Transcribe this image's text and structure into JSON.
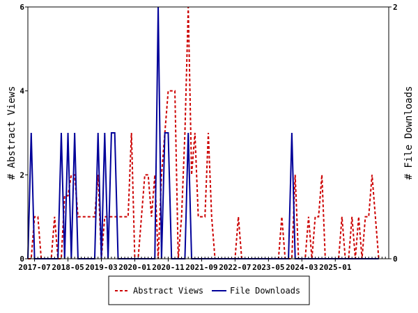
{
  "chart_data": {
    "type": "line",
    "title": "",
    "xlabel": "",
    "ylabel_left": "# Abstract Views",
    "ylabel_right": "# File Downloads",
    "ylim_left": [
      0,
      6
    ],
    "ylim_right": [
      0,
      2
    ],
    "yticks_left": [
      "0",
      "2",
      "4",
      "6"
    ],
    "yticks_right": [
      "0",
      "2"
    ],
    "x_range": [
      "2017-05",
      "2026-05"
    ],
    "x_ticks": [
      "2017-07",
      "2018-05",
      "2019-03",
      "2020-01",
      "2020-11",
      "2021-09",
      "2022-07",
      "2023-05",
      "2024-03",
      "2025-01"
    ],
    "grid": false,
    "legend_placement": "bottom",
    "series": [
      {
        "name": "Abstract Views",
        "axis": "left",
        "color": "#cc0000",
        "dash": "dashed",
        "points": [
          [
            "2017-05",
            0
          ],
          [
            "2017-06",
            0
          ],
          [
            "2017-07",
            1
          ],
          [
            "2017-08",
            1
          ],
          [
            "2017-09",
            0
          ],
          [
            "2017-10",
            0
          ],
          [
            "2017-11",
            0
          ],
          [
            "2017-12",
            0
          ],
          [
            "2018-01",
            1
          ],
          [
            "2018-02",
            0
          ],
          [
            "2018-03",
            0
          ],
          [
            "2018-04",
            1.5
          ],
          [
            "2018-05",
            1.5
          ],
          [
            "2018-06",
            2
          ],
          [
            "2018-07",
            2
          ],
          [
            "2018-08",
            1
          ],
          [
            "2018-09",
            1
          ],
          [
            "2018-10",
            1
          ],
          [
            "2018-11",
            1
          ],
          [
            "2018-12",
            1
          ],
          [
            "2019-01",
            1
          ],
          [
            "2019-02",
            2
          ],
          [
            "2019-03",
            0
          ],
          [
            "2019-04",
            1
          ],
          [
            "2019-05",
            1
          ],
          [
            "2019-06",
            1
          ],
          [
            "2019-07",
            1
          ],
          [
            "2019-08",
            1
          ],
          [
            "2019-09",
            1
          ],
          [
            "2019-10",
            1
          ],
          [
            "2019-11",
            1
          ],
          [
            "2019-12",
            3
          ],
          [
            "2020-01",
            0
          ],
          [
            "2020-02",
            0
          ],
          [
            "2020-03",
            1
          ],
          [
            "2020-04",
            2
          ],
          [
            "2020-05",
            2
          ],
          [
            "2020-06",
            1
          ],
          [
            "2020-07",
            2
          ],
          [
            "2020-08",
            0
          ],
          [
            "2020-09",
            2
          ],
          [
            "2020-10",
            3
          ],
          [
            "2020-11",
            4
          ],
          [
            "2020-12",
            4
          ],
          [
            "2021-01",
            4
          ],
          [
            "2021-02",
            0
          ],
          [
            "2021-03",
            1
          ],
          [
            "2021-04",
            3
          ],
          [
            "2021-05",
            6
          ],
          [
            "2021-06",
            2
          ],
          [
            "2021-07",
            3
          ],
          [
            "2021-08",
            1
          ],
          [
            "2021-09",
            1
          ],
          [
            "2021-10",
            1
          ],
          [
            "2021-11",
            3
          ],
          [
            "2021-12",
            1
          ],
          [
            "2022-01",
            0
          ],
          [
            "2022-02",
            0
          ],
          [
            "2022-03",
            0
          ],
          [
            "2022-04",
            0
          ],
          [
            "2022-05",
            0
          ],
          [
            "2022-06",
            0
          ],
          [
            "2022-07",
            0
          ],
          [
            "2022-08",
            1
          ],
          [
            "2022-09",
            0
          ],
          [
            "2022-10",
            0
          ],
          [
            "2022-11",
            0
          ],
          [
            "2022-12",
            0
          ],
          [
            "2023-01",
            0
          ],
          [
            "2023-02",
            0
          ],
          [
            "2023-03",
            0
          ],
          [
            "2023-04",
            0
          ],
          [
            "2023-05",
            0
          ],
          [
            "2023-06",
            0
          ],
          [
            "2023-07",
            0
          ],
          [
            "2023-08",
            0
          ],
          [
            "2023-09",
            1
          ],
          [
            "2023-10",
            0
          ],
          [
            "2023-11",
            0
          ],
          [
            "2023-12",
            0
          ],
          [
            "2024-01",
            2
          ],
          [
            "2024-02",
            0
          ],
          [
            "2024-03",
            0
          ],
          [
            "2024-04",
            0
          ],
          [
            "2024-05",
            1
          ],
          [
            "2024-06",
            0
          ],
          [
            "2024-07",
            1
          ],
          [
            "2024-08",
            1
          ],
          [
            "2024-09",
            2
          ],
          [
            "2024-10",
            0
          ],
          [
            "2024-11",
            0
          ],
          [
            "2024-12",
            0
          ],
          [
            "2025-01",
            0
          ],
          [
            "2025-02",
            0
          ],
          [
            "2025-03",
            1
          ],
          [
            "2025-04",
            0
          ],
          [
            "2025-05",
            0
          ],
          [
            "2025-06",
            1
          ],
          [
            "2025-07",
            0
          ],
          [
            "2025-08",
            1
          ],
          [
            "2025-09",
            0
          ],
          [
            "2025-10",
            1
          ],
          [
            "2025-11",
            1
          ],
          [
            "2025-12",
            2
          ],
          [
            "2026-01",
            1
          ],
          [
            "2026-02",
            0
          ]
        ]
      },
      {
        "name": "File Downloads",
        "axis": "right",
        "color": "#000099",
        "dash": "solid",
        "points": [
          [
            "2017-05",
            0
          ],
          [
            "2017-06",
            1
          ],
          [
            "2017-07",
            0
          ],
          [
            "2017-08",
            0
          ],
          [
            "2017-09",
            0
          ],
          [
            "2017-10",
            0
          ],
          [
            "2017-11",
            0
          ],
          [
            "2017-12",
            0
          ],
          [
            "2018-01",
            0
          ],
          [
            "2018-02",
            0
          ],
          [
            "2018-03",
            1
          ],
          [
            "2018-04",
            0
          ],
          [
            "2018-05",
            1
          ],
          [
            "2018-06",
            0
          ],
          [
            "2018-07",
            1
          ],
          [
            "2018-08",
            0
          ],
          [
            "2018-09",
            0
          ],
          [
            "2018-10",
            0
          ],
          [
            "2018-11",
            0
          ],
          [
            "2018-12",
            0
          ],
          [
            "2019-01",
            0
          ],
          [
            "2019-02",
            1
          ],
          [
            "2019-03",
            0
          ],
          [
            "2019-04",
            1
          ],
          [
            "2019-05",
            0
          ],
          [
            "2019-06",
            1
          ],
          [
            "2019-07",
            1
          ],
          [
            "2019-08",
            0
          ],
          [
            "2019-09",
            0
          ],
          [
            "2019-10",
            0
          ],
          [
            "2019-11",
            0
          ],
          [
            "2019-12",
            0
          ],
          [
            "2020-01",
            0
          ],
          [
            "2020-02",
            0
          ],
          [
            "2020-03",
            0
          ],
          [
            "2020-04",
            0
          ],
          [
            "2020-05",
            0
          ],
          [
            "2020-06",
            0
          ],
          [
            "2020-07",
            0
          ],
          [
            "2020-08",
            2
          ],
          [
            "2020-09",
            0
          ],
          [
            "2020-10",
            1
          ],
          [
            "2020-11",
            1
          ],
          [
            "2020-12",
            0
          ],
          [
            "2021-01",
            0
          ],
          [
            "2021-02",
            0
          ],
          [
            "2021-03",
            0
          ],
          [
            "2021-04",
            0
          ],
          [
            "2021-05",
            1
          ],
          [
            "2021-06",
            0
          ],
          [
            "2021-07",
            0
          ],
          [
            "2021-08",
            0
          ],
          [
            "2021-09",
            0
          ],
          [
            "2021-10",
            0
          ],
          [
            "2021-11",
            0
          ],
          [
            "2021-12",
            0
          ],
          [
            "2022-01",
            0
          ],
          [
            "2022-02",
            0
          ],
          [
            "2022-03",
            0
          ],
          [
            "2022-04",
            0
          ],
          [
            "2022-05",
            0
          ],
          [
            "2022-06",
            0
          ],
          [
            "2022-07",
            0
          ],
          [
            "2022-08",
            0
          ],
          [
            "2022-09",
            0
          ],
          [
            "2022-10",
            0
          ],
          [
            "2022-11",
            0
          ],
          [
            "2022-12",
            0
          ],
          [
            "2023-01",
            0
          ],
          [
            "2023-02",
            0
          ],
          [
            "2023-03",
            0
          ],
          [
            "2023-04",
            0
          ],
          [
            "2023-05",
            0
          ],
          [
            "2023-06",
            0
          ],
          [
            "2023-07",
            0
          ],
          [
            "2023-08",
            0
          ],
          [
            "2023-09",
            0
          ],
          [
            "2023-10",
            0
          ],
          [
            "2023-11",
            0
          ],
          [
            "2023-12",
            1
          ],
          [
            "2024-01",
            0
          ],
          [
            "2024-02",
            0
          ],
          [
            "2024-03",
            0
          ],
          [
            "2024-04",
            0
          ],
          [
            "2024-05",
            0
          ],
          [
            "2024-06",
            0
          ],
          [
            "2024-07",
            0
          ],
          [
            "2024-08",
            0
          ],
          [
            "2024-09",
            0
          ],
          [
            "2024-10",
            0
          ],
          [
            "2024-11",
            0
          ],
          [
            "2024-12",
            0
          ],
          [
            "2025-01",
            0
          ],
          [
            "2025-02",
            0
          ],
          [
            "2025-03",
            0
          ],
          [
            "2025-04",
            0
          ],
          [
            "2025-05",
            0
          ],
          [
            "2025-06",
            0
          ],
          [
            "2025-07",
            0
          ],
          [
            "2025-08",
            0
          ],
          [
            "2025-09",
            0
          ],
          [
            "2025-10",
            0
          ],
          [
            "2025-11",
            0
          ],
          [
            "2025-12",
            0
          ],
          [
            "2026-01",
            0
          ],
          [
            "2026-02",
            0
          ]
        ]
      }
    ]
  }
}
